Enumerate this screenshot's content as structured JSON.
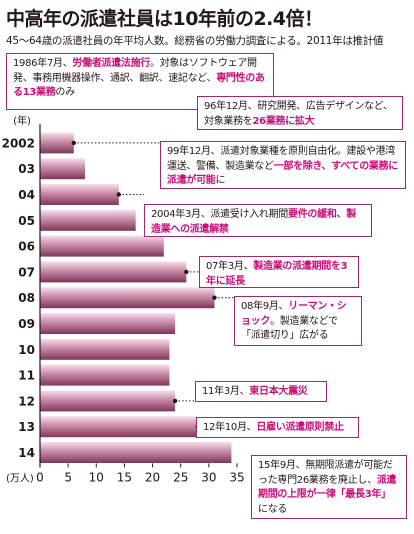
{
  "title": "中高年の派遣社員は10年前の2.4倍！",
  "subtitle": "45～64歳の派遣社員の年平均人数。総務省の労働力調査による。2011年は推計値",
  "chart_data": {
    "type": "bar",
    "orientation": "horizontal",
    "categories": [
      "2002",
      "03",
      "04",
      "05",
      "06",
      "07",
      "08",
      "09",
      "10",
      "11",
      "12",
      "13",
      "14"
    ],
    "values": [
      6,
      8,
      14,
      17,
      22,
      26,
      31,
      24,
      23,
      23,
      24,
      28,
      34
    ],
    "y_unit_label": "(年)",
    "x_unit_label": "(万人)",
    "xticks": [
      0,
      5,
      10,
      15,
      20,
      25,
      30,
      35
    ],
    "xlim": [
      0,
      35
    ],
    "grid": false,
    "colors": {
      "bar_top": "#f4d8e6",
      "bar_mid": "#c98aa8",
      "bar_bottom": "#8a4064",
      "accent": "#c8107a",
      "border": "#9c2a73"
    }
  },
  "annotations": [
    {
      "id": "a1",
      "parts": [
        [
          "1986年7月、",
          false
        ],
        [
          "労働者派遣法施行",
          true
        ],
        [
          "。対象はソフトウェア開発、事務用機器操作、通訳、翻訳、速記など、",
          false
        ],
        [
          "専門性のある13業務",
          true
        ],
        [
          "のみ",
          false
        ]
      ]
    },
    {
      "id": "a2",
      "parts": [
        [
          "96年12月、研究開発、広告デザインなど、対象業務を",
          false
        ],
        [
          "26業務に拡大",
          true
        ]
      ]
    },
    {
      "id": "a3",
      "parts": [
        [
          "99年12月、派遣対象業種を原則自由化。建設や港湾運送、警備、製造業など",
          false
        ],
        [
          "一部を除き、すべての業務に派遣が可能",
          true
        ],
        [
          "に",
          false
        ]
      ]
    },
    {
      "id": "a4",
      "parts": [
        [
          "2004年3月、派遣受け入れ期間",
          false
        ],
        [
          "要件の緩和、製造業への派遣解禁",
          true
        ]
      ]
    },
    {
      "id": "a5",
      "parts": [
        [
          "07年3月、",
          false
        ],
        [
          "製造業の派遣期間を3年に延長",
          true
        ]
      ]
    },
    {
      "id": "a6",
      "parts": [
        [
          "08年9月、",
          false
        ],
        [
          "リーマン・ショック",
          true
        ],
        [
          "。製造業などで「派遣切り」広がる",
          false
        ]
      ]
    },
    {
      "id": "a7",
      "parts": [
        [
          "11年3月、",
          false
        ],
        [
          "東日本大震災",
          true
        ]
      ]
    },
    {
      "id": "a8",
      "parts": [
        [
          "12年10月、",
          false
        ],
        [
          "日雇い派遣原則禁止",
          true
        ]
      ]
    },
    {
      "id": "a9",
      "parts": [
        [
          "15年9月、無期限派遣が可能だった専門26業務を廃止し、",
          false
        ],
        [
          "派遣期間の上限が一律「最長3年」",
          true
        ],
        [
          "になる",
          false
        ]
      ]
    }
  ]
}
